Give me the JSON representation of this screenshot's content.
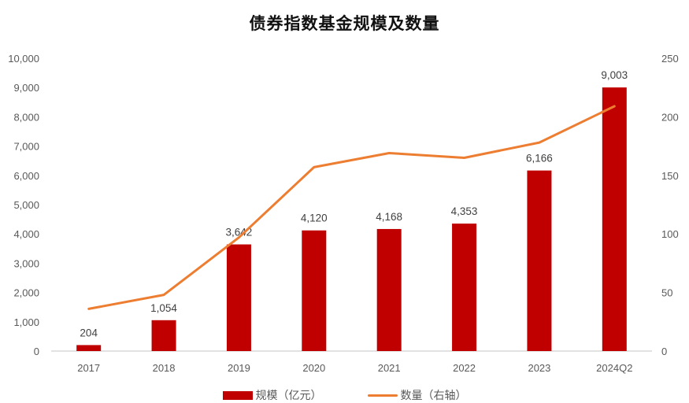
{
  "title": "债券指数基金规模及数量",
  "colors": {
    "bar": "#C00000",
    "line": "#ED7D31",
    "axis": "#D9D9D9",
    "tick_text": "#595959"
  },
  "legend": [
    {
      "label": "规模（亿元）",
      "type": "bar"
    },
    {
      "label": "数量（右轴）",
      "type": "line"
    }
  ],
  "chart_data": {
    "type": "bar",
    "title": "债券指数基金规模及数量",
    "categories": [
      "2017",
      "2018",
      "2019",
      "2020",
      "2021",
      "2022",
      "2023",
      "2024Q2"
    ],
    "series": [
      {
        "name": "规模（亿元）",
        "type": "bar",
        "axis": "left",
        "values": [
          204,
          1054,
          3642,
          4120,
          4168,
          4353,
          6166,
          9003
        ],
        "data_labels": [
          "204",
          "1,054",
          "3,642",
          "4,120",
          "4,168",
          "4,353",
          "6,166",
          "9,003"
        ]
      },
      {
        "name": "数量（右轴）",
        "type": "line",
        "axis": "right",
        "values": [
          36,
          48,
          97,
          157,
          169,
          165,
          178,
          209
        ]
      }
    ],
    "y_left": {
      "ylim": [
        0,
        10000
      ],
      "ticks": [
        "0",
        "1,000",
        "2,000",
        "3,000",
        "4,000",
        "5,000",
        "6,000",
        "7,000",
        "8,000",
        "9,000",
        "10,000"
      ]
    },
    "y_right": {
      "ylim": [
        0,
        250
      ],
      "ticks": [
        "0",
        "50",
        "100",
        "150",
        "200",
        "250"
      ]
    },
    "xlabel": "",
    "ylabel": "",
    "grid": false,
    "legend_position": "bottom"
  }
}
